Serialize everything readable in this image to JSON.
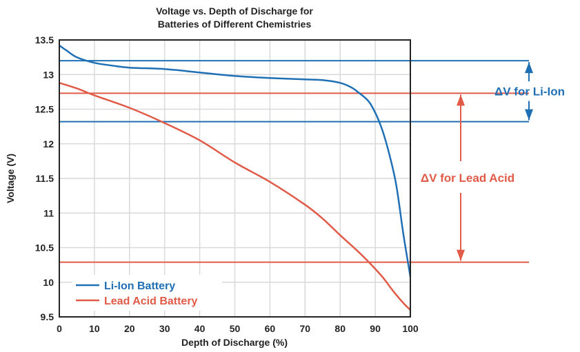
{
  "chart_data": {
    "type": "line",
    "title_line1": "Voltage vs. Depth of Discharge for",
    "title_line2": "Batteries of Different Chemistries",
    "xlabel": "Depth of Discharge (%)",
    "ylabel": "Voltage (V)",
    "xlim": [
      0,
      100
    ],
    "ylim": [
      9.5,
      13.5
    ],
    "x_ticks": [
      0,
      10,
      20,
      30,
      40,
      50,
      60,
      70,
      80,
      90,
      100
    ],
    "x_tick_labels": [
      "0",
      "10",
      "20",
      "30",
      "40",
      "50",
      "60",
      "70",
      "80",
      "90",
      "100"
    ],
    "y_ticks": [
      9.5,
      10,
      10.5,
      11,
      11.5,
      12,
      12.5,
      13,
      13.5
    ],
    "y_tick_labels": [
      "9.5",
      "10",
      "10.5",
      "11",
      "11.5",
      "12",
      "12.5",
      "13",
      "13.5"
    ],
    "grid": true,
    "legend_position": "bottom-left",
    "series": [
      {
        "name": "Li-Ion Battery",
        "color": "#1f6fb5",
        "x": [
          0,
          2,
          5,
          10,
          15,
          20,
          30,
          40,
          50,
          60,
          70,
          75,
          80,
          83,
          85,
          88,
          90,
          92,
          94,
          96,
          98,
          100
        ],
        "y": [
          13.42,
          13.35,
          13.25,
          13.17,
          13.13,
          13.1,
          13.08,
          13.03,
          12.98,
          12.95,
          12.93,
          12.92,
          12.88,
          12.82,
          12.75,
          12.62,
          12.45,
          12.2,
          11.85,
          11.4,
          10.7,
          10.08
        ]
      },
      {
        "name": "Lead Acid Battery",
        "color": "#e05a47",
        "x": [
          0,
          5,
          10,
          20,
          30,
          40,
          50,
          60,
          70,
          75,
          80,
          85,
          88,
          92,
          95,
          98,
          100
        ],
        "y": [
          12.88,
          12.8,
          12.7,
          12.52,
          12.3,
          12.05,
          11.73,
          11.45,
          11.12,
          10.92,
          10.68,
          10.45,
          10.3,
          10.08,
          9.88,
          9.7,
          9.6
        ]
      }
    ],
    "reference_lines": [
      {
        "y": 13.2,
        "color": "#1f6fb5"
      },
      {
        "y": 12.32,
        "color": "#1f6fb5"
      },
      {
        "y": 12.73,
        "color": "#e05a47"
      },
      {
        "y": 10.29,
        "color": "#e05a47"
      }
    ],
    "annotations": [
      {
        "text": "ΔV for Li-Ion",
        "color": "#1f6fb5",
        "y_top": 13.2,
        "y_bottom": 12.32
      },
      {
        "text": "ΔV for Lead Acid",
        "color": "#e05a47",
        "y_top": 12.73,
        "y_bottom": 10.29
      }
    ]
  }
}
